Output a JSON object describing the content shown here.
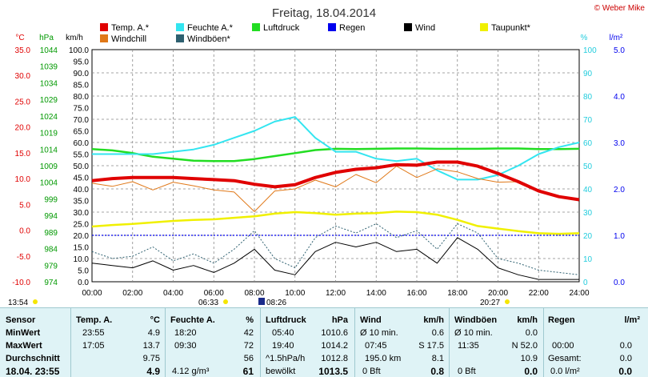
{
  "title": "Freitag, 18.04.2014",
  "copyright": "© Weber Mike",
  "legend": [
    {
      "label": "Temp. A.*",
      "color": "#e00000"
    },
    {
      "label": "Feuchte A.*",
      "color": "#33e5f0"
    },
    {
      "label": "Luftdruck",
      "color": "#22dd22"
    },
    {
      "label": "Regen",
      "color": "#0000ee"
    },
    {
      "label": "Wind",
      "color": "#000000"
    },
    {
      "label": "Taupunkt*",
      "color": "#f0f000"
    },
    {
      "label": "Windchill",
      "color": "#e07818"
    },
    {
      "label": "Windböen*",
      "color": "#2e6070"
    }
  ],
  "axis_units": {
    "temp": "°C",
    "pressure": "hPa",
    "wind": "km/h",
    "humidity": "%",
    "rain": "l/m²"
  },
  "axis_ticks": {
    "temp": [
      "35.0",
      "30.0",
      "25.0",
      "20.0",
      "15.0",
      "10.0",
      "5.0",
      "0.0",
      "-5.0",
      "-10.0"
    ],
    "pressure": [
      "1044",
      "1039",
      "1034",
      "1029",
      "1024",
      "1019",
      "1014",
      "1009",
      "1004",
      "999",
      "994",
      "989",
      "984",
      "979",
      "974"
    ],
    "wind": [
      "100.0",
      "95.0",
      "90.0",
      "85.0",
      "80.0",
      "75.0",
      "70.0",
      "65.0",
      "60.0",
      "55.0",
      "50.0",
      "45.0",
      "40.0",
      "35.0",
      "30.0",
      "25.0",
      "20.0",
      "15.0",
      "10.0",
      "5.0",
      "0.0"
    ],
    "humidity": [
      "100",
      "90",
      "80",
      "70",
      "60",
      "50",
      "40",
      "30",
      "20",
      "10",
      "0"
    ],
    "rain": [
      "5.0",
      "4.0",
      "3.0",
      "2.0",
      "1.0",
      "0.0"
    ],
    "time": [
      "00:00",
      "02:00",
      "04:00",
      "06:00",
      "08:00",
      "10:00",
      "12:00",
      "14:00",
      "16:00",
      "18:00",
      "20:00",
      "22:00",
      "24:00"
    ]
  },
  "sun_times": {
    "current": "13:54",
    "sunrise": "06:33",
    "sunset": "20:27",
    "moon": "08:26"
  },
  "chart_data": {
    "type": "line",
    "title": "Freitag, 18.04.2014",
    "x_label": "",
    "x_range": [
      "00:00",
      "24:00"
    ],
    "y_ranges": {
      "temp": [
        -10,
        35
      ],
      "pressure": [
        974,
        1044
      ],
      "wind": [
        0,
        100
      ],
      "humidity": [
        0,
        100
      ],
      "rain": [
        0,
        5
      ]
    },
    "x": [
      "00:00",
      "01:00",
      "02:00",
      "03:00",
      "04:00",
      "05:00",
      "06:00",
      "07:00",
      "08:00",
      "09:00",
      "10:00",
      "11:00",
      "12:00",
      "13:00",
      "14:00",
      "15:00",
      "16:00",
      "17:00",
      "18:00",
      "19:00",
      "20:00",
      "21:00",
      "22:00",
      "23:00",
      "24:00"
    ],
    "series": [
      {
        "name": "Temp. A.*",
        "axis": "temp",
        "color": "#e00000",
        "values": [
          9.6,
          10.0,
          10.2,
          10.2,
          10.2,
          10.0,
          9.8,
          9.6,
          8.9,
          8.4,
          8.8,
          10.2,
          11.2,
          11.8,
          12.1,
          12.7,
          12.6,
          13.2,
          13.2,
          12.4,
          11.0,
          9.4,
          7.6,
          6.5,
          5.9
        ]
      },
      {
        "name": "Feuchte A.*",
        "axis": "humidity",
        "color": "#33e5f0",
        "values": [
          55,
          55,
          55,
          55,
          56,
          57,
          59,
          62,
          65,
          69,
          71,
          62,
          56,
          56,
          53,
          52,
          53,
          48,
          44,
          44,
          46,
          50,
          55,
          58,
          60
        ]
      },
      {
        "name": "Luftdruck",
        "axis": "pressure",
        "color": "#22dd22",
        "values": [
          1014.0,
          1013.6,
          1012.8,
          1011.7,
          1011.1,
          1010.5,
          1010.4,
          1010.4,
          1011.0,
          1011.9,
          1012.8,
          1013.7,
          1014.1,
          1014.0,
          1014.1,
          1014.2,
          1014.2,
          1014.1,
          1014.1,
          1014.1,
          1014.2,
          1014.2,
          1014.0,
          1014.0,
          1014.1
        ]
      },
      {
        "name": "Regen",
        "axis": "rain",
        "color": "#0000ee",
        "values": [
          1.0,
          1.0,
          1.0,
          1.0,
          1.0,
          1.0,
          1.0,
          1.0,
          1.0,
          1.0,
          1.0,
          1.0,
          1.0,
          1.0,
          1.0,
          1.0,
          1.0,
          1.0,
          1.0,
          1.0,
          1.0,
          1.0,
          1.0,
          1.0,
          1.0
        ]
      },
      {
        "name": "Wind",
        "axis": "wind",
        "color": "#000000",
        "values": [
          8,
          7,
          6,
          9,
          5,
          7,
          4,
          8,
          14,
          5,
          3,
          13,
          17,
          15,
          17,
          13,
          14,
          8,
          19,
          14,
          6,
          3,
          1,
          1,
          1
        ]
      },
      {
        "name": "Taupunkt*",
        "axis": "temp",
        "color": "#f0f000",
        "values": [
          0.7,
          1.0,
          1.2,
          1.5,
          1.8,
          2.0,
          2.1,
          2.4,
          2.7,
          3.2,
          3.5,
          3.3,
          3.0,
          3.2,
          3.3,
          3.6,
          3.5,
          3.0,
          2.0,
          0.8,
          0.3,
          -0.2,
          -0.6,
          -0.7,
          -0.6
        ]
      },
      {
        "name": "Windchill",
        "axis": "temp",
        "color": "#e07818",
        "values": [
          9.1,
          8.5,
          9.4,
          7.8,
          9.3,
          8.6,
          7.8,
          7.4,
          3.6,
          7.6,
          8.0,
          9.7,
          8.4,
          10.8,
          9.2,
          12.4,
          10.2,
          11.9,
          11.3,
          10.0,
          9.3,
          9.4,
          7.6,
          6.5,
          5.9
        ]
      },
      {
        "name": "Windböen*",
        "axis": "wind",
        "color": "#2e6070",
        "values": [
          13,
          10,
          11,
          15,
          9,
          12,
          8,
          14,
          22,
          10,
          6,
          19,
          24,
          21,
          25,
          19,
          22,
          14,
          25,
          21,
          10,
          8,
          5,
          4,
          3
        ]
      }
    ]
  },
  "stats": {
    "header": {
      "sensor": "Sensor",
      "temp": "Temp. A.",
      "temp_unit": "°C",
      "hum": "Feuchte A.",
      "hum_unit": "%",
      "press": "Luftdruck",
      "press_unit": "hPa",
      "wind": "Wind",
      "wind_unit": "km/h",
      "gust": "Windböen",
      "gust_unit": "km/h",
      "rain": "Regen",
      "rain_unit": "l/m²"
    },
    "min": {
      "label": "MinWert",
      "temp_time": "23:55",
      "temp_val": "4.9",
      "hum_time": "18:20",
      "hum_val": "42",
      "press_time": "05:40",
      "press_val": "1010.6",
      "wind_a": "Ø 10 min.",
      "wind_val": "0.6",
      "gust_a": "Ø 10 min.",
      "gust_val": "0.0"
    },
    "max": {
      "label": "MaxWert",
      "temp_time": "17:05",
      "temp_val": "13.7",
      "hum_time": "09:30",
      "hum_val": "72",
      "press_time": "19:40",
      "press_val": "1014.2",
      "wind_a": "07:45",
      "wind_b": "S 17.5",
      "gust_a": "11:35",
      "gust_b": "N 52.0",
      "rain_a": "00:00",
      "rain_val": "0.0"
    },
    "avg": {
      "label": "Durchschnitt",
      "temp_val": "9.75",
      "hum_val": "56",
      "press_a": "^1.5hPa/h",
      "press_val": "1012.8",
      "wind_a": "195.0 km",
      "wind_val": "8.1",
      "gust_val": "10.9",
      "rain_a": "Gesamt:",
      "rain_val": "0.0"
    },
    "current": {
      "label": "18.04. 23:55",
      "temp_val": "4.9",
      "hum_a": "4.12 g/m³",
      "hum_val": "61",
      "press_a": "bewölkt",
      "press_val": "1013.5",
      "wind_a": "0 Bft",
      "wind_val": "0.8",
      "gust_a": "0 Bft",
      "gust_val": "0.0",
      "rain_a": "0.0 l/m²",
      "rain_val": "0.0"
    }
  }
}
